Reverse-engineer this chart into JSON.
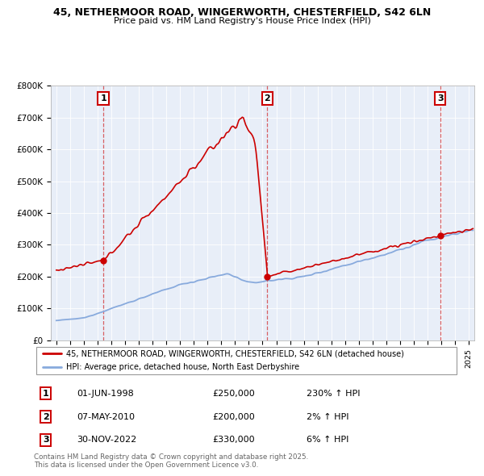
{
  "title1": "45, NETHERMOOR ROAD, WINGERWORTH, CHESTERFIELD, S42 6LN",
  "title2": "Price paid vs. HM Land Registry's House Price Index (HPI)",
  "ylim": [
    0,
    800000
  ],
  "yticks": [
    0,
    100000,
    200000,
    300000,
    400000,
    500000,
    600000,
    700000,
    800000
  ],
  "ytick_labels": [
    "£0",
    "£100K",
    "£200K",
    "£300K",
    "£400K",
    "£500K",
    "£600K",
    "£700K",
    "£800K"
  ],
  "xlim_start": 1994.6,
  "xlim_end": 2025.4,
  "sale_dates": [
    1998.42,
    2010.35,
    2022.92
  ],
  "sale_prices": [
    250000,
    200000,
    330000
  ],
  "sale_labels": [
    "1",
    "2",
    "3"
  ],
  "sale_date_strs": [
    "01-JUN-1998",
    "07-MAY-2010",
    "30-NOV-2022"
  ],
  "sale_price_strs": [
    "£250,000",
    "£200,000",
    "£330,000"
  ],
  "sale_hpi_strs": [
    "230% ↑ HPI",
    "2% ↑ HPI",
    "6% ↑ HPI"
  ],
  "red_color": "#cc0000",
  "blue_color": "#88aadd",
  "chart_bg": "#e8eef8",
  "legend1": "45, NETHERMOOR ROAD, WINGERWORTH, CHESTERFIELD, S42 6LN (detached house)",
  "legend2": "HPI: Average price, detached house, North East Derbyshire",
  "footnote": "Contains HM Land Registry data © Crown copyright and database right 2025.\nThis data is licensed under the Open Government Licence v3.0."
}
